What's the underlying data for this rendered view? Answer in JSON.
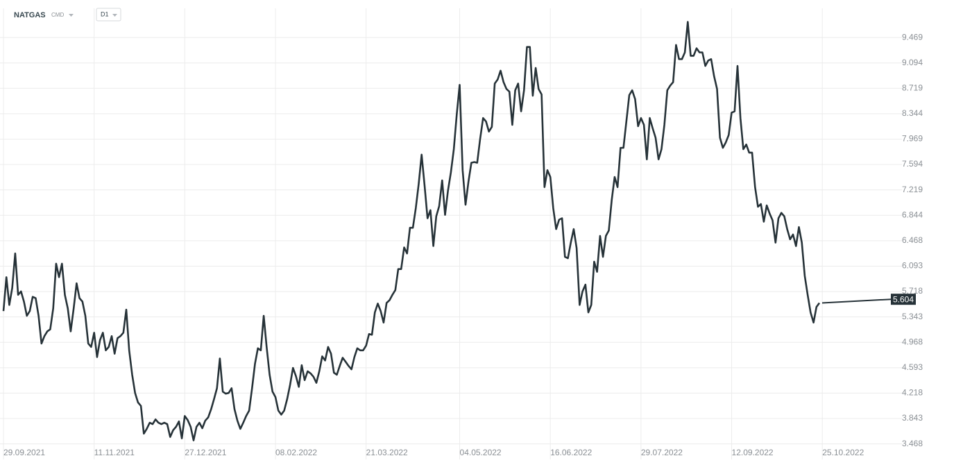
{
  "header": {
    "symbol": "NATGAS",
    "market": "CMD",
    "timeframe": "D1"
  },
  "chart_data": {
    "type": "line",
    "color": "#263238",
    "grid": true,
    "last_price": 5.604,
    "ylim": [
      3.31,
      9.87
    ],
    "yticks": [
      3.468,
      3.843,
      4.218,
      4.593,
      4.968,
      5.343,
      5.718,
      6.093,
      6.468,
      6.844,
      7.219,
      7.594,
      7.969,
      8.344,
      8.719,
      9.094,
      9.469
    ],
    "categories": [
      "29.09.2021",
      null,
      null,
      null,
      null,
      null,
      null,
      null,
      null,
      null,
      null,
      null,
      null,
      null,
      null,
      null,
      null,
      null,
      null,
      null,
      null,
      null,
      null,
      null,
      null,
      null,
      null,
      null,
      null,
      null,
      null,
      "11.11.2021",
      null,
      null,
      null,
      null,
      null,
      null,
      null,
      null,
      null,
      null,
      null,
      null,
      null,
      null,
      null,
      null,
      null,
      null,
      null,
      null,
      null,
      null,
      null,
      null,
      null,
      null,
      null,
      null,
      null,
      null,
      "27.12.2021",
      null,
      null,
      null,
      null,
      null,
      null,
      null,
      null,
      null,
      null,
      null,
      null,
      null,
      null,
      null,
      null,
      null,
      null,
      null,
      null,
      null,
      null,
      null,
      null,
      null,
      null,
      null,
      null,
      null,
      null,
      "08.02.2022",
      null,
      null,
      null,
      null,
      null,
      null,
      null,
      null,
      null,
      null,
      null,
      null,
      null,
      null,
      null,
      null,
      null,
      null,
      null,
      null,
      null,
      null,
      null,
      null,
      null,
      null,
      null,
      null,
      null,
      null,
      "21.03.2022",
      null,
      null,
      null,
      null,
      null,
      null,
      null,
      null,
      null,
      null,
      null,
      null,
      null,
      null,
      null,
      null,
      null,
      null,
      null,
      null,
      null,
      null,
      null,
      null,
      null,
      null,
      null,
      null,
      null,
      null,
      null,
      "04.05.2022",
      null,
      null,
      null,
      null,
      null,
      null,
      null,
      null,
      null,
      null,
      null,
      null,
      null,
      null,
      null,
      null,
      null,
      null,
      null,
      null,
      null,
      null,
      null,
      null,
      null,
      null,
      null,
      null,
      null,
      null,
      "16.06.2022",
      null,
      null,
      null,
      null,
      null,
      null,
      null,
      null,
      null,
      null,
      null,
      null,
      null,
      null,
      null,
      null,
      null,
      null,
      null,
      null,
      null,
      null,
      null,
      null,
      null,
      null,
      null,
      null,
      null,
      null,
      "29.07.2022",
      null,
      null,
      null,
      null,
      null,
      null,
      null,
      null,
      null,
      null,
      null,
      null,
      null,
      null,
      null,
      null,
      null,
      null,
      null,
      null,
      null,
      null,
      null,
      null,
      null,
      null,
      null,
      null,
      null,
      null,
      "12.09.2022",
      null,
      null,
      null,
      null,
      null,
      null,
      null,
      null,
      null,
      null,
      null,
      null,
      null,
      null,
      null,
      null,
      null,
      null,
      null,
      null,
      null,
      null,
      null,
      null,
      null,
      null,
      null,
      null,
      null,
      null,
      "25.10.2022"
    ],
    "values": [
      5.43,
      5.93,
      5.52,
      5.77,
      6.28,
      5.67,
      5.72,
      5.57,
      5.36,
      5.43,
      5.64,
      5.62,
      5.36,
      4.95,
      5.06,
      5.13,
      5.16,
      5.47,
      6.13,
      5.93,
      6.13,
      5.67,
      5.47,
      5.13,
      5.47,
      5.84,
      5.62,
      5.57,
      5.36,
      4.95,
      4.9,
      5.11,
      4.75,
      5.0,
      5.11,
      4.85,
      4.9,
      5.06,
      4.8,
      5.03,
      5.06,
      5.11,
      5.45,
      4.85,
      4.49,
      4.22,
      4.08,
      4.03,
      3.62,
      3.69,
      3.78,
      3.76,
      3.83,
      3.78,
      3.76,
      3.78,
      3.76,
      3.57,
      3.67,
      3.72,
      3.8,
      3.55,
      3.88,
      3.82,
      3.72,
      3.52,
      3.72,
      3.78,
      3.7,
      3.81,
      3.86,
      3.98,
      4.13,
      4.29,
      4.73,
      4.24,
      4.21,
      4.22,
      4.29,
      3.98,
      3.81,
      3.69,
      3.78,
      3.88,
      3.96,
      4.29,
      4.65,
      4.88,
      4.85,
      5.36,
      4.9,
      4.49,
      4.24,
      4.16,
      3.96,
      3.9,
      3.96,
      4.13,
      4.34,
      4.59,
      4.47,
      4.31,
      4.63,
      4.41,
      4.54,
      4.51,
      4.46,
      4.37,
      4.54,
      4.76,
      4.7,
      4.9,
      4.8,
      4.52,
      4.49,
      4.62,
      4.74,
      4.68,
      4.62,
      4.57,
      4.75,
      4.88,
      4.85,
      4.85,
      4.92,
      5.09,
      5.08,
      5.41,
      5.54,
      5.43,
      5.26,
      5.55,
      5.59,
      5.67,
      5.74,
      6.05,
      6.05,
      6.37,
      6.28,
      6.66,
      6.66,
      6.95,
      7.31,
      7.74,
      7.28,
      6.8,
      6.92,
      6.39,
      6.83,
      6.98,
      7.36,
      6.85,
      7.21,
      7.48,
      7.82,
      8.33,
      8.77,
      7.51,
      7.0,
      7.34,
      7.62,
      7.63,
      7.62,
      7.97,
      8.28,
      8.23,
      8.08,
      8.15,
      8.79,
      8.85,
      8.98,
      8.81,
      8.71,
      8.67,
      8.18,
      8.69,
      8.79,
      8.38,
      8.69,
      9.33,
      9.33,
      8.61,
      9.02,
      8.71,
      8.63,
      7.26,
      7.51,
      7.41,
      6.95,
      6.64,
      6.78,
      6.8,
      6.23,
      6.21,
      6.44,
      6.64,
      6.36,
      5.52,
      5.72,
      5.82,
      5.41,
      5.52,
      6.16,
      6.01,
      6.54,
      6.23,
      6.54,
      6.62,
      7.07,
      7.41,
      7.26,
      7.84,
      7.84,
      8.23,
      8.62,
      8.69,
      8.56,
      8.16,
      8.28,
      8.18,
      7.67,
      8.28,
      8.13,
      7.99,
      7.67,
      7.82,
      8.18,
      8.69,
      8.76,
      8.81,
      9.36,
      9.15,
      9.15,
      9.25,
      9.7,
      9.2,
      9.2,
      9.31,
      9.25,
      9.25,
      9.05,
      9.13,
      9.15,
      8.9,
      8.71,
      7.99,
      7.84,
      7.92,
      8.03,
      8.36,
      8.38,
      9.05,
      8.28,
      7.82,
      7.89,
      7.77,
      7.77,
      7.26,
      6.97,
      7.01,
      6.75,
      6.99,
      6.87,
      6.77,
      6.44,
      6.8,
      6.88,
      6.83,
      6.64,
      6.49,
      6.56,
      6.39,
      6.67,
      6.44,
      5.95,
      5.67,
      5.41,
      5.26,
      5.49,
      5.55,
      null
    ]
  }
}
